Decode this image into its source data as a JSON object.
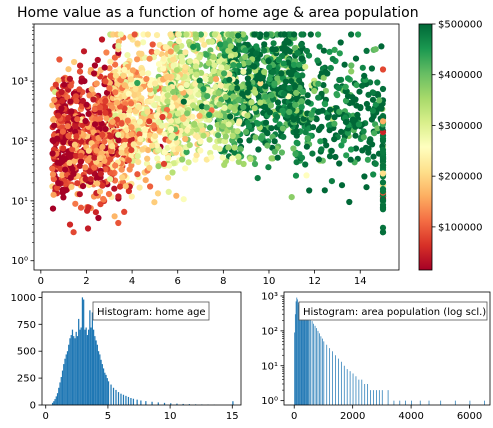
{
  "chart_data": [
    {
      "type": "scatter",
      "title": "Home value as a function of home age & area population",
      "xlabel": "",
      "ylabel": "",
      "xlim": [
        -0.3,
        15.7
      ],
      "ylim": [
        0.7,
        9000
      ],
      "yscale": "log",
      "xticks": [
        0,
        2,
        4,
        6,
        8,
        10,
        12,
        14
      ],
      "yticks": [
        {
          "value": 1,
          "label": "10⁰"
        },
        {
          "value": 10,
          "label": "10¹"
        },
        {
          "value": 100,
          "label": "10²"
        },
        {
          "value": 1000,
          "label": "10³"
        }
      ],
      "color_encoding": "median home value",
      "colormap": "RdYlGn",
      "colormap_stops": [
        "#a50026",
        "#d73027",
        "#f46d43",
        "#fdae61",
        "#fee08b",
        "#ffffbf",
        "#d9ef8b",
        "#a6d96a",
        "#66bd63",
        "#1a9850",
        "#006837"
      ],
      "points_note": "approx. 3000 points; x spans 0.5–15 (home age), y spans 3–6000 (area population); color shifts from red at low x to green at high x; a vertical column of points at x = 15",
      "clusters": [
        {
          "x_range": [
            0.5,
            4.0
          ],
          "y_center": 120,
          "value_center": 90000
        },
        {
          "x_range": [
            3.0,
            6.5
          ],
          "y_center": 400,
          "value_center": 220000
        },
        {
          "x_range": [
            5.5,
            8.5
          ],
          "y_center": 600,
          "value_center": 330000
        },
        {
          "x_range": [
            8.0,
            11.5
          ],
          "y_center": 800,
          "value_center": 460000
        },
        {
          "x_range": [
            11.0,
            15.0
          ],
          "y_center": 350,
          "value_center": 490000
        }
      ],
      "grid": false,
      "legend": "none"
    },
    {
      "type": "colorbar",
      "range": [
        15000,
        500001
      ],
      "tick_values": [
        100000,
        200000,
        300000,
        400000,
        500000
      ],
      "tick_labels": [
        "$100000",
        "$200000",
        "$300000",
        "$400000",
        "$500000"
      ],
      "colormap": "RdYlGn"
    },
    {
      "type": "bar",
      "annotation": "Histogram: home age",
      "xlim": [
        -0.3,
        15.7
      ],
      "ylim": [
        0,
        1050
      ],
      "xticks": [
        0,
        5,
        10,
        15
      ],
      "yticks": [
        0,
        250,
        500,
        750,
        1000
      ],
      "bin_width": 0.1,
      "color": "#1f77b4",
      "x": [
        0.5,
        0.6,
        0.7,
        0.8,
        0.9,
        1.0,
        1.1,
        1.2,
        1.3,
        1.4,
        1.5,
        1.6,
        1.7,
        1.8,
        1.9,
        2.0,
        2.1,
        2.2,
        2.3,
        2.4,
        2.5,
        2.6,
        2.7,
        2.8,
        2.9,
        3.0,
        3.1,
        3.2,
        3.3,
        3.4,
        3.5,
        3.6,
        3.7,
        3.8,
        3.9,
        4.0,
        4.1,
        4.2,
        4.3,
        4.4,
        4.5,
        4.6,
        4.7,
        4.8,
        4.9,
        5.0,
        5.2,
        5.4,
        5.6,
        5.8,
        6.0,
        6.2,
        6.4,
        6.6,
        6.8,
        7.0,
        7.3,
        7.6,
        8.0,
        8.5,
        9.0,
        9.5,
        10.0,
        10.5,
        11.0,
        11.5,
        12.0,
        12.5,
        13.0,
        13.5,
        15.0
      ],
      "values": [
        20,
        35,
        55,
        80,
        110,
        160,
        210,
        260,
        320,
        380,
        430,
        470,
        500,
        560,
        620,
        650,
        700,
        640,
        620,
        680,
        640,
        800,
        700,
        720,
        1000,
        980,
        700,
        720,
        650,
        700,
        880,
        720,
        860,
        700,
        640,
        600,
        560,
        500,
        470,
        420,
        380,
        340,
        300,
        280,
        250,
        220,
        190,
        160,
        140,
        120,
        105,
        95,
        85,
        75,
        65,
        58,
        50,
        42,
        36,
        30,
        24,
        20,
        16,
        13,
        10,
        8,
        6,
        5,
        4,
        3,
        35
      ]
    },
    {
      "type": "bar",
      "annotation": "Histogram: area population (log scl.)",
      "xlim": [
        -350,
        6700
      ],
      "ylim": [
        0.75,
        1300
      ],
      "yscale": "log",
      "xticks": [
        0,
        2000,
        4000,
        6000
      ],
      "yticks": [
        {
          "value": 1,
          "label": "10⁰"
        },
        {
          "value": 10,
          "label": "10¹"
        },
        {
          "value": 100,
          "label": "10²"
        },
        {
          "value": 1000,
          "label": "10³"
        }
      ],
      "bin_width": 25,
      "color": "#1f77b4",
      "x": [
        0,
        25,
        50,
        75,
        100,
        125,
        150,
        175,
        200,
        225,
        250,
        275,
        300,
        325,
        350,
        375,
        400,
        425,
        450,
        475,
        500,
        550,
        600,
        650,
        700,
        750,
        800,
        850,
        900,
        950,
        1000,
        1100,
        1200,
        1300,
        1400,
        1500,
        1600,
        1700,
        1800,
        1900,
        2000,
        2100,
        2200,
        2300,
        2400,
        2500,
        2600,
        2700,
        2800,
        2900,
        3000,
        3200,
        3400,
        3600,
        3800,
        4000,
        4300,
        4600,
        5000,
        5500,
        6000,
        6500
      ],
      "values": [
        90,
        300,
        700,
        900,
        800,
        650,
        550,
        480,
        420,
        380,
        350,
        330,
        320,
        310,
        300,
        290,
        280,
        270,
        260,
        250,
        240,
        220,
        190,
        160,
        140,
        120,
        100,
        85,
        70,
        60,
        50,
        40,
        32,
        26,
        20,
        16,
        13,
        10,
        8,
        7,
        6,
        5,
        4,
        4,
        3,
        3,
        2,
        2,
        2,
        2,
        2,
        2,
        1,
        1,
        1,
        1,
        1,
        1,
        1,
        1,
        1,
        1
      ]
    }
  ]
}
